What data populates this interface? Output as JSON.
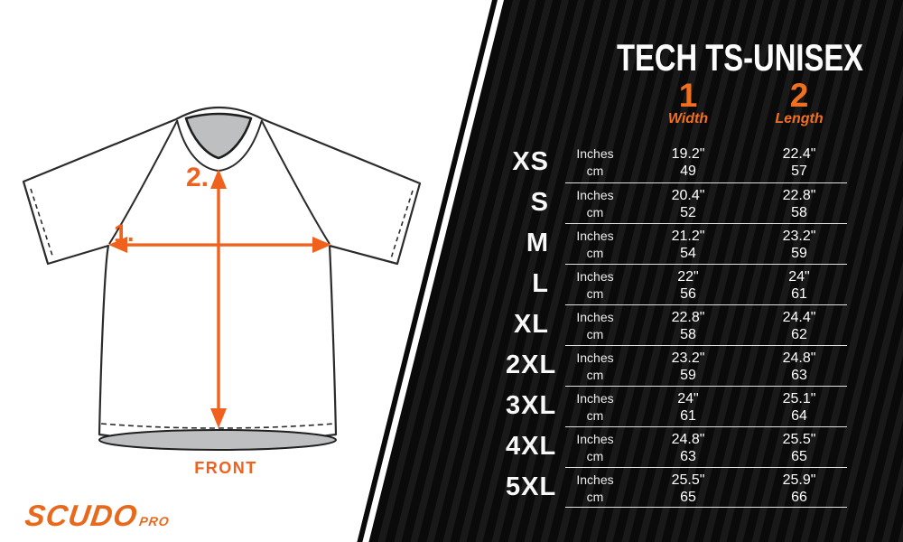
{
  "brand": {
    "logo_text": "SCUDO",
    "logo_suffix": "PRO"
  },
  "diagram": {
    "front_label": "FRONT",
    "width_marker": "1.",
    "length_marker": "2."
  },
  "panel": {
    "title": "TECH TS-UNISEX",
    "columns": [
      {
        "num": "1",
        "label": "Width"
      },
      {
        "num": "2",
        "label": "Length"
      }
    ],
    "unit_labels": {
      "inches": "Inches",
      "cm": "cm"
    },
    "rows": [
      {
        "size": "XS",
        "width_in": "19.2\"",
        "width_cm": "49",
        "length_in": "22.4\"",
        "length_cm": "57"
      },
      {
        "size": "S",
        "width_in": "20.4\"",
        "width_cm": "52",
        "length_in": "22.8\"",
        "length_cm": "58"
      },
      {
        "size": "M",
        "width_in": "21.2\"",
        "width_cm": "54",
        "length_in": "23.2\"",
        "length_cm": "59"
      },
      {
        "size": "L",
        "width_in": "22\"",
        "width_cm": "56",
        "length_in": "24\"",
        "length_cm": "61"
      },
      {
        "size": "XL",
        "width_in": "22.8\"",
        "width_cm": "58",
        "length_in": "24.4\"",
        "length_cm": "62"
      },
      {
        "size": "2XL",
        "width_in": "23.2\"",
        "width_cm": "59",
        "length_in": "24.8\"",
        "length_cm": "63"
      },
      {
        "size": "3XL",
        "width_in": "24\"",
        "width_cm": "61",
        "length_in": "25.1\"",
        "length_cm": "64"
      },
      {
        "size": "4XL",
        "width_in": "24.8\"",
        "width_cm": "63",
        "length_in": "25.5\"",
        "length_cm": "65"
      },
      {
        "size": "5XL",
        "width_in": "25.5\"",
        "width_cm": "65",
        "length_in": "25.9\"",
        "length_cm": "66"
      }
    ],
    "colors": {
      "accent_orange": "#F0701F",
      "logo_orange": "#E8681C",
      "panel_black": "#0A0A0A",
      "panel_stripe": "#191919",
      "garment_gray": "#BDBFC1"
    }
  }
}
